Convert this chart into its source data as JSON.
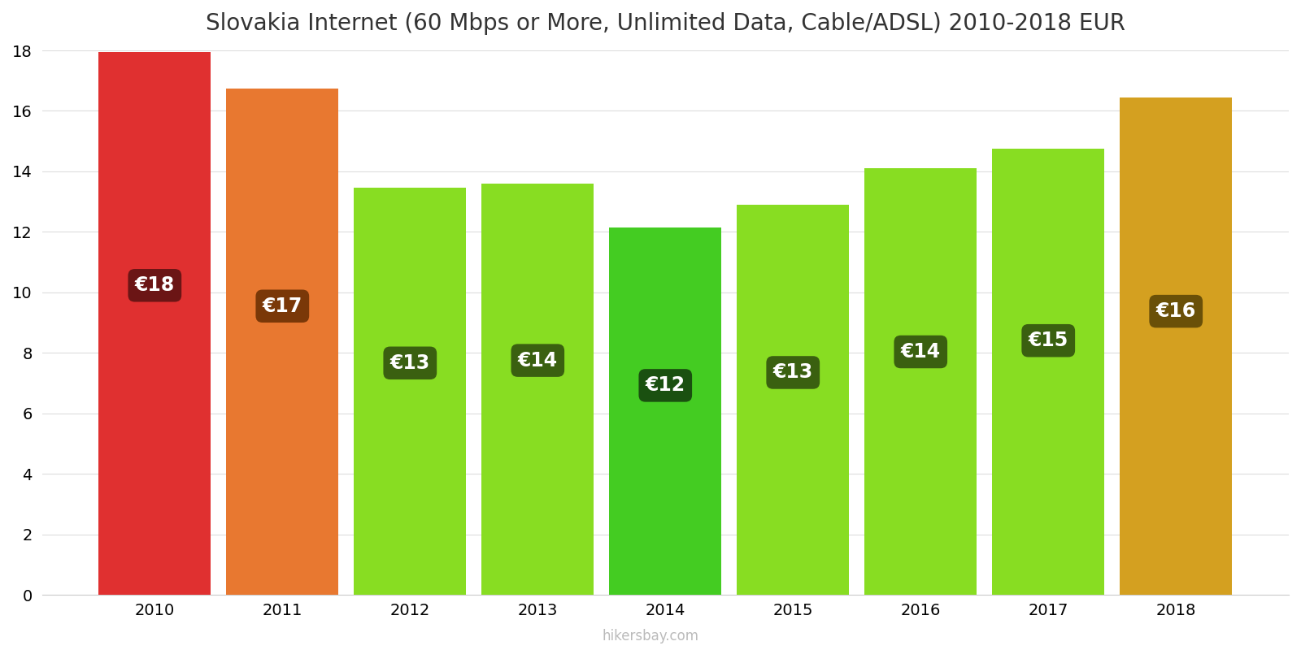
{
  "title": "Slovakia Internet (60 Mbps or More, Unlimited Data, Cable/ADSL) 2010-2018 EUR",
  "years": [
    2010,
    2011,
    2012,
    2013,
    2014,
    2015,
    2016,
    2017,
    2018
  ],
  "values": [
    17.95,
    16.75,
    13.45,
    13.6,
    12.15,
    12.9,
    14.1,
    14.75,
    16.45
  ],
  "labels": [
    "€18",
    "€17",
    "€13",
    "€14",
    "€12",
    "€13",
    "€14",
    "€15",
    "€16"
  ],
  "bar_colors": [
    "#e03030",
    "#e87830",
    "#88dd22",
    "#88dd22",
    "#44cc22",
    "#88dd22",
    "#88dd22",
    "#88dd22",
    "#d4a020"
  ],
  "label_bg_colors": [
    "#6b1515",
    "#7a3808",
    "#3a6010",
    "#3a6010",
    "#1a5010",
    "#3a6010",
    "#3a6010",
    "#3a6010",
    "#6a5008"
  ],
  "ylim": [
    0,
    18
  ],
  "yticks": [
    0,
    2,
    4,
    6,
    8,
    10,
    12,
    14,
    16,
    18
  ],
  "watermark": "hikersbay.com",
  "background_color": "#ffffff",
  "title_fontsize": 20,
  "label_fontsize": 17,
  "tick_fontsize": 14,
  "bar_width": 0.88
}
